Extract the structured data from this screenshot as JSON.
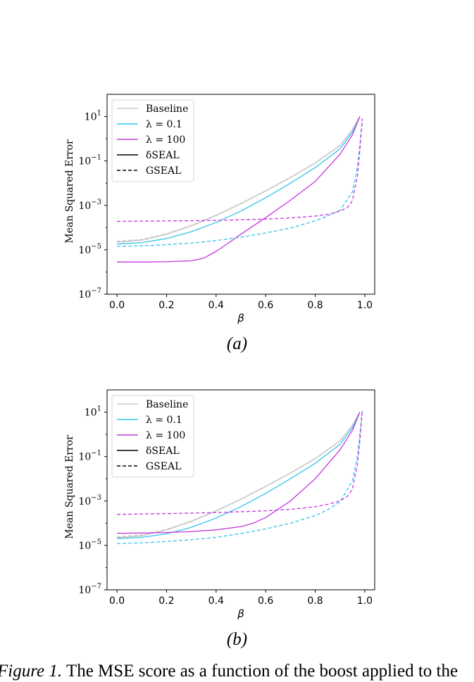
{
  "panels": [
    {
      "subcaption": "(a)"
    },
    {
      "subcaption": "(b)"
    }
  ],
  "caption": {
    "label": "Figure 1.",
    "text": "The MSE score as a function of the boost applied to the"
  },
  "chart_data": [
    {
      "type": "line",
      "xlabel": "β",
      "ylabel": "Mean Squared Error",
      "xlim": [
        -0.04,
        1.04
      ],
      "ylim": [
        1e-07,
        100
      ],
      "yscale": "log",
      "xticks": [
        0.0,
        0.2,
        0.4,
        0.6,
        0.8,
        1.0
      ],
      "xtick_labels": [
        "0.0",
        "0.2",
        "0.4",
        "0.6",
        "0.8",
        "1.0"
      ],
      "ytick_labels": [
        {
          "base": "10",
          "exp": "−7"
        },
        {
          "base": "10",
          "exp": "−5"
        },
        {
          "base": "10",
          "exp": "−3"
        },
        {
          "base": "10",
          "exp": "−1"
        },
        {
          "base": "10",
          "exp": "1"
        }
      ],
      "legend_position": "top-left",
      "legend": [
        {
          "label": "Baseline",
          "color": "#c8c8c8",
          "style": "solid"
        },
        {
          "label": "λ = 0.1",
          "color": "#35c3ea",
          "style": "solid"
        },
        {
          "label": "λ = 100",
          "color": "#c535e0",
          "style": "solid"
        },
        {
          "label": "δSEAL",
          "color": "#000000",
          "style": "solid"
        },
        {
          "label": "GSEAL",
          "color": "#000000",
          "style": "dashed"
        }
      ],
      "series": [
        {
          "color": "#c8c8c8",
          "style": "solid",
          "width": 1.6,
          "x": [
            0.0,
            0.1,
            0.2,
            0.3,
            0.4,
            0.5,
            0.6,
            0.7,
            0.8,
            0.9,
            0.95,
            0.98
          ],
          "y": [
            2.2e-05,
            2.7e-05,
            5e-05,
            0.00012,
            0.00035,
            0.0012,
            0.0045,
            0.018,
            0.08,
            0.5,
            2.5,
            10
          ]
        },
        {
          "color": "#c8c8c8",
          "style": "dashed",
          "width": 1.6,
          "x": [
            0.0,
            0.1,
            0.2,
            0.3,
            0.4,
            0.5,
            0.6,
            0.7,
            0.8,
            0.9,
            0.95,
            0.98
          ],
          "y": [
            2.4e-05,
            2.9e-05,
            5.2e-05,
            0.000125,
            0.00036,
            0.0012,
            0.0045,
            0.018,
            0.08,
            0.5,
            2.5,
            10
          ]
        },
        {
          "color": "#35c3ea",
          "style": "solid",
          "width": 1.3,
          "x": [
            0.0,
            0.1,
            0.2,
            0.3,
            0.4,
            0.5,
            0.6,
            0.7,
            0.8,
            0.9,
            0.95,
            0.98
          ],
          "y": [
            1.8e-05,
            2.1e-05,
            3.2e-05,
            6.5e-05,
            0.00017,
            0.00055,
            0.0022,
            0.01,
            0.05,
            0.35,
            2.0,
            10
          ]
        },
        {
          "color": "#c535e0",
          "style": "solid",
          "width": 1.3,
          "x": [
            0.0,
            0.1,
            0.2,
            0.3,
            0.35,
            0.4,
            0.45,
            0.5,
            0.6,
            0.7,
            0.8,
            0.9,
            0.95,
            0.98
          ],
          "y": [
            2.8e-06,
            2.8e-06,
            2.9e-06,
            3.2e-06,
            4.2e-06,
            8.5e-06,
            2e-05,
            5e-05,
            0.00028,
            0.0017,
            0.012,
            0.2,
            1.5,
            10
          ]
        },
        {
          "color": "#35c3ea",
          "style": "dashed",
          "width": 1.3,
          "x": [
            0.0,
            0.1,
            0.2,
            0.3,
            0.4,
            0.5,
            0.6,
            0.7,
            0.8,
            0.85,
            0.9,
            0.95,
            0.97,
            0.98,
            0.99
          ],
          "y": [
            1.4e-05,
            1.5e-05,
            1.7e-05,
            2e-05,
            2.6e-05,
            3.7e-05,
            5.7e-05,
            9.5e-05,
            0.0002,
            0.00033,
            0.0006,
            0.004,
            0.05,
            0.5,
            8
          ]
        },
        {
          "color": "#c535e0",
          "style": "dashed",
          "width": 1.3,
          "x": [
            0.0,
            0.2,
            0.4,
            0.6,
            0.7,
            0.8,
            0.85,
            0.9,
            0.93,
            0.95,
            0.97,
            0.98,
            0.99
          ],
          "y": [
            0.00019,
            0.0002,
            0.00021,
            0.00024,
            0.00027,
            0.00033,
            0.00039,
            0.00055,
            0.0008,
            0.0016,
            0.02,
            0.3,
            8
          ]
        }
      ]
    },
    {
      "type": "line",
      "xlabel": "β",
      "ylabel": "Mean Squared Error",
      "xlim": [
        -0.04,
        1.04
      ],
      "ylim": [
        1e-07,
        100
      ],
      "yscale": "log",
      "xticks": [
        0.0,
        0.2,
        0.4,
        0.6,
        0.8,
        1.0
      ],
      "xtick_labels": [
        "0.0",
        "0.2",
        "0.4",
        "0.6",
        "0.8",
        "1.0"
      ],
      "ytick_labels": [
        {
          "base": "10",
          "exp": "−7"
        },
        {
          "base": "10",
          "exp": "−5"
        },
        {
          "base": "10",
          "exp": "−3"
        },
        {
          "base": "10",
          "exp": "−1"
        },
        {
          "base": "10",
          "exp": "1"
        }
      ],
      "legend_position": "top-left",
      "legend": [
        {
          "label": "Baseline",
          "color": "#c8c8c8",
          "style": "solid"
        },
        {
          "label": "λ = 0.1",
          "color": "#35c3ea",
          "style": "solid"
        },
        {
          "label": "λ = 100",
          "color": "#c535e0",
          "style": "solid"
        },
        {
          "label": "δSEAL",
          "color": "#000000",
          "style": "solid"
        },
        {
          "label": "GSEAL",
          "color": "#000000",
          "style": "dashed"
        }
      ],
      "series": [
        {
          "color": "#c8c8c8",
          "style": "solid",
          "width": 1.6,
          "x": [
            0.0,
            0.1,
            0.2,
            0.3,
            0.4,
            0.5,
            0.6,
            0.7,
            0.8,
            0.9,
            0.95,
            0.98
          ],
          "y": [
            2.2e-05,
            2.7e-05,
            5e-05,
            0.00012,
            0.00035,
            0.0012,
            0.0045,
            0.018,
            0.08,
            0.5,
            2.5,
            10
          ]
        },
        {
          "color": "#c8c8c8",
          "style": "dashed",
          "width": 1.6,
          "x": [
            0.0,
            0.1,
            0.2,
            0.3,
            0.4,
            0.5,
            0.6,
            0.7,
            0.8,
            0.9,
            0.95,
            0.98
          ],
          "y": [
            2.4e-05,
            2.9e-05,
            5.2e-05,
            0.000125,
            0.00036,
            0.0012,
            0.0045,
            0.018,
            0.08,
            0.5,
            2.5,
            10
          ]
        },
        {
          "color": "#35c3ea",
          "style": "solid",
          "width": 1.3,
          "x": [
            0.0,
            0.1,
            0.2,
            0.3,
            0.4,
            0.5,
            0.6,
            0.7,
            0.8,
            0.9,
            0.95,
            0.98
          ],
          "y": [
            2e-05,
            2.3e-05,
            3.3e-05,
            6.5e-05,
            0.00017,
            0.00055,
            0.0022,
            0.01,
            0.05,
            0.35,
            2.0,
            10
          ]
        },
        {
          "color": "#c535e0",
          "style": "solid",
          "width": 1.3,
          "x": [
            0.0,
            0.1,
            0.2,
            0.3,
            0.4,
            0.5,
            0.55,
            0.6,
            0.7,
            0.8,
            0.9,
            0.95,
            0.98
          ],
          "y": [
            3.5e-05,
            3.6e-05,
            3.8e-05,
            4.2e-05,
            5e-05,
            7e-05,
            0.0001,
            0.00018,
            0.001,
            0.01,
            0.2,
            1.5,
            10
          ]
        },
        {
          "color": "#35c3ea",
          "style": "dashed",
          "width": 1.3,
          "x": [
            0.0,
            0.1,
            0.2,
            0.3,
            0.4,
            0.5,
            0.6,
            0.7,
            0.8,
            0.85,
            0.9,
            0.95,
            0.97,
            0.98,
            0.99
          ],
          "y": [
            1.2e-05,
            1.3e-05,
            1.5e-05,
            1.8e-05,
            2.3e-05,
            3.4e-05,
            5.5e-05,
            0.0001,
            0.00022,
            0.0004,
            0.0009,
            0.008,
            0.1,
            1.0,
            12
          ]
        },
        {
          "color": "#c535e0",
          "style": "dashed",
          "width": 1.3,
          "x": [
            0.0,
            0.2,
            0.4,
            0.6,
            0.7,
            0.8,
            0.85,
            0.9,
            0.93,
            0.95,
            0.97,
            0.98,
            0.99
          ],
          "y": [
            0.00025,
            0.00027,
            0.0003,
            0.00036,
            0.00042,
            0.00055,
            0.0007,
            0.001,
            0.0016,
            0.0035,
            0.04,
            0.5,
            12
          ]
        }
      ]
    }
  ]
}
